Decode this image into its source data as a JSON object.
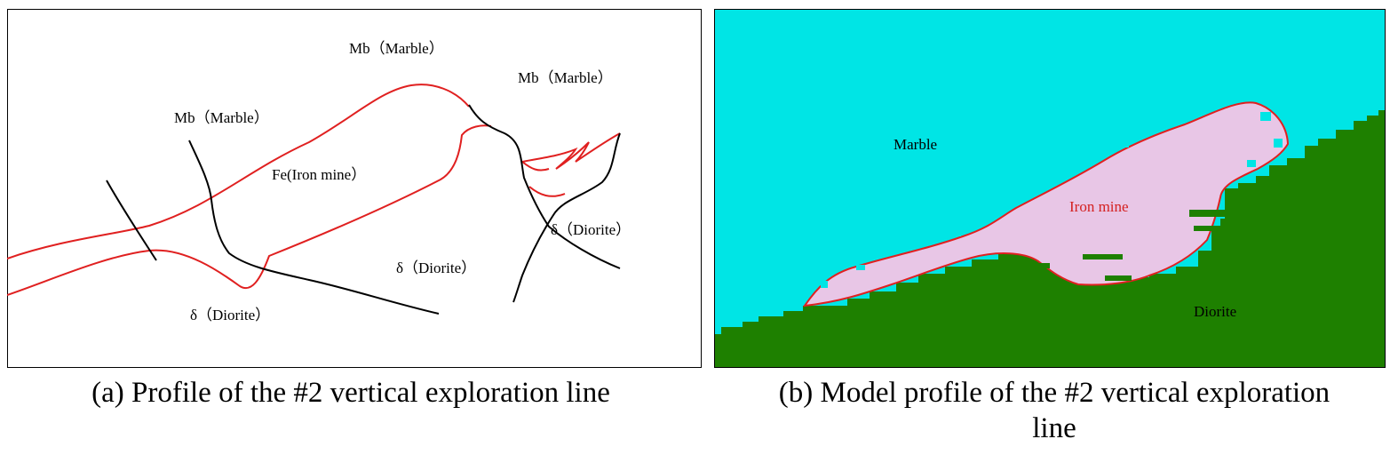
{
  "panel_a": {
    "labels": {
      "mb_top": "Mb（Marble）",
      "mb_right": "Mb（Marble）",
      "mb_left": "Mb（Marble）",
      "fe": "Fe(Iron mine）",
      "diorite_center": "δ（Diorite）",
      "diorite_right": "δ（Diorite）",
      "diorite_bottom": "δ（Diorite）"
    },
    "caption": "(a)  Profile of the #2 vertical exploration line"
  },
  "panel_b": {
    "labels": {
      "marble": "Marble",
      "iron": "Iron mine",
      "diorite": "Diorite"
    },
    "caption_line1": "(b) Model profile of the #2 vertical exploration",
    "caption_line2": "line"
  },
  "colors": {
    "marble_cyan": "#00e5e5",
    "diorite_green": "#1e8000",
    "iron_pink": "#e8c6e6",
    "boundary_red": "#e02020"
  }
}
